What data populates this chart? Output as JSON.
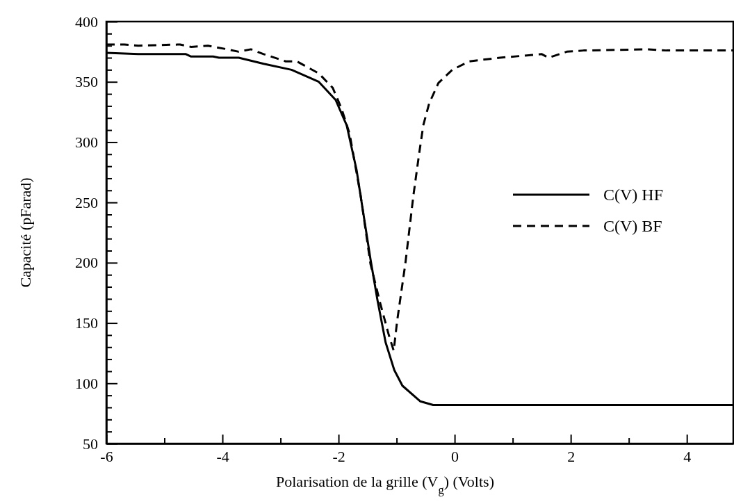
{
  "chart_data": {
    "type": "line",
    "xlabel": "Polarisation de la grille (V$_{g}$) (Volts)",
    "ylabel": "Capacité (pFarad)",
    "xlim": [
      -6,
      4.8
    ],
    "ylim": [
      50,
      400
    ],
    "xticks": [
      -6,
      {
        "value": -5,
        "label": null
      },
      -4,
      {
        "value": -3,
        "label": null
      },
      -2,
      {
        "value": -1,
        "label": null
      },
      0,
      {
        "value": 1,
        "label": null
      },
      2,
      {
        "value": 3,
        "label": null
      },
      4
    ],
    "yticks": [
      50,
      {
        "value": 60,
        "label": null
      },
      {
        "value": 70,
        "label": null
      },
      {
        "value": 80,
        "label": null
      },
      {
        "value": 90,
        "label": null
      },
      100,
      {
        "value": 110,
        "label": null
      },
      {
        "value": 120,
        "label": null
      },
      {
        "value": 130,
        "label": null
      },
      {
        "value": 140,
        "label": null
      },
      150,
      {
        "value": 160,
        "label": null
      },
      {
        "value": 170,
        "label": null
      },
      {
        "value": 180,
        "label": null
      },
      {
        "value": 190,
        "label": null
      },
      200,
      {
        "value": 210,
        "label": null
      },
      {
        "value": 220,
        "label": null
      },
      {
        "value": 230,
        "label": null
      },
      {
        "value": 240,
        "label": null
      },
      250,
      {
        "value": 260,
        "label": null
      },
      {
        "value": 270,
        "label": null
      },
      {
        "value": 280,
        "label": null
      },
      {
        "value": 290,
        "label": null
      },
      300,
      {
        "value": 310,
        "label": null
      },
      {
        "value": 320,
        "label": null
      },
      {
        "value": 330,
        "label": null
      },
      {
        "value": 340,
        "label": null
      },
      350,
      {
        "value": 360,
        "label": null
      },
      {
        "value": 370,
        "label": null
      },
      {
        "value": 380,
        "label": null
      },
      {
        "value": 390,
        "label": null
      },
      400
    ],
    "grid": false,
    "legend": "right",
    "marker": "none",
    "series": [
      {
        "name": "C(V) HF",
        "color": "#000000",
        "line_style": "solid",
        "x": [
          -6,
          -5.45,
          -4.63,
          -4.54,
          -4.16,
          -4.06,
          -3.72,
          -3.29,
          -2.81,
          -2.34,
          -2.05,
          -1.86,
          -1.69,
          -1.57,
          -1.45,
          -1.33,
          -1.19,
          -1.04,
          -0.9,
          -0.59,
          -0.37,
          4.8
        ],
        "values": [
          374,
          373,
          373,
          371,
          371,
          370,
          370,
          365,
          360,
          350,
          335,
          314,
          277,
          240,
          203,
          169,
          134,
          111,
          98,
          85,
          82,
          82
        ]
      },
      {
        "name": "C(V) BF",
        "color": "#000000",
        "line_style": "dashed",
        "x": [
          -6,
          -5.69,
          -5.45,
          -4.73,
          -4.54,
          -4.25,
          -3.92,
          -3.72,
          -3.51,
          -3.29,
          -2.91,
          -2.72,
          -2.34,
          -2.1,
          -1.95,
          -1.81,
          -1.62,
          -1.45,
          -1.28,
          -1.14,
          -1.05,
          -0.99,
          -0.85,
          -0.71,
          -0.61,
          -0.54,
          -0.44,
          -0.28,
          -0.04,
          0.25,
          0.78,
          1.5,
          1.62,
          1.93,
          2.22,
          3.34,
          3.65,
          4.8
        ],
        "values": [
          381,
          381,
          380,
          381,
          379,
          380,
          377,
          375,
          377,
          373,
          367,
          367,
          357,
          345,
          328,
          307,
          256,
          199,
          166,
          141,
          127,
          152,
          199,
          256,
          291,
          314,
          332,
          349,
          360,
          367,
          370,
          373,
          370,
          375,
          376,
          377,
          376,
          376
        ]
      }
    ]
  }
}
